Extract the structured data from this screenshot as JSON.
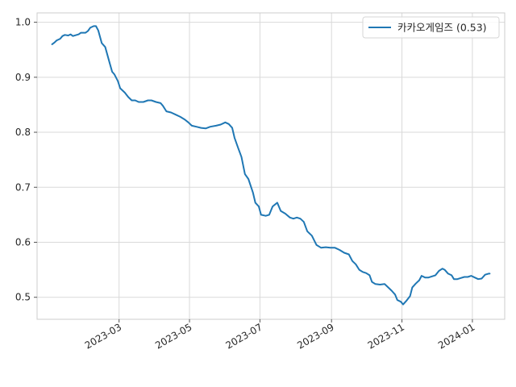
{
  "chart_data": {
    "type": "line",
    "title": "",
    "xlabel": "",
    "ylabel": "",
    "x_axis": "date",
    "xlim": [
      "2022-12-20",
      "2024-01-29"
    ],
    "ylim": [
      0.46,
      1.017
    ],
    "grid": true,
    "legend_position": "top-right",
    "x_ticks": [
      {
        "date": "2023-03-01",
        "label": "2023-03"
      },
      {
        "date": "2023-05-01",
        "label": "2023-05"
      },
      {
        "date": "2023-07-01",
        "label": "2023-07"
      },
      {
        "date": "2023-09-01",
        "label": "2023-09"
      },
      {
        "date": "2023-11-01",
        "label": "2023-11"
      },
      {
        "date": "2024-01-01",
        "label": "2024-01"
      }
    ],
    "y_ticks": [
      {
        "value": 0.5,
        "label": "0.5"
      },
      {
        "value": 0.6,
        "label": "0.6"
      },
      {
        "value": 0.7,
        "label": "0.7"
      },
      {
        "value": 0.8,
        "label": "0.8"
      },
      {
        "value": 0.9,
        "label": "0.9"
      },
      {
        "value": 1.0,
        "label": "1.0"
      }
    ],
    "series": [
      {
        "name": "카카오게임즈 (0.53)",
        "color": "#1f77b4",
        "points": [
          [
            "2023-01-02",
            0.96
          ],
          [
            "2023-01-04",
            0.963
          ],
          [
            "2023-01-06",
            0.967
          ],
          [
            "2023-01-09",
            0.97
          ],
          [
            "2023-01-11",
            0.975
          ],
          [
            "2023-01-13",
            0.977
          ],
          [
            "2023-01-16",
            0.976
          ],
          [
            "2023-01-18",
            0.978
          ],
          [
            "2023-01-20",
            0.975
          ],
          [
            "2023-01-25",
            0.978
          ],
          [
            "2023-01-27",
            0.981
          ],
          [
            "2023-01-31",
            0.981
          ],
          [
            "2023-02-02",
            0.984
          ],
          [
            "2023-02-04",
            0.99
          ],
          [
            "2023-02-07",
            0.993
          ],
          [
            "2023-02-09",
            0.993
          ],
          [
            "2023-02-11",
            0.985
          ],
          [
            "2023-02-14",
            0.962
          ],
          [
            "2023-02-17",
            0.955
          ],
          [
            "2023-02-21",
            0.925
          ],
          [
            "2023-02-23",
            0.91
          ],
          [
            "2023-02-25",
            0.905
          ],
          [
            "2023-02-28",
            0.893
          ],
          [
            "2023-03-02",
            0.88
          ],
          [
            "2023-03-06",
            0.872
          ],
          [
            "2023-03-09",
            0.864
          ],
          [
            "2023-03-12",
            0.858
          ],
          [
            "2023-03-15",
            0.858
          ],
          [
            "2023-03-18",
            0.855
          ],
          [
            "2023-03-22",
            0.855
          ],
          [
            "2023-03-26",
            0.858
          ],
          [
            "2023-03-29",
            0.858
          ],
          [
            "2023-04-02",
            0.855
          ],
          [
            "2023-04-06",
            0.853
          ],
          [
            "2023-04-08",
            0.848
          ],
          [
            "2023-04-11",
            0.838
          ],
          [
            "2023-04-15",
            0.836
          ],
          [
            "2023-04-19",
            0.832
          ],
          [
            "2023-04-23",
            0.828
          ],
          [
            "2023-04-27",
            0.823
          ],
          [
            "2023-04-30",
            0.818
          ],
          [
            "2023-05-03",
            0.812
          ],
          [
            "2023-05-07",
            0.81
          ],
          [
            "2023-05-11",
            0.808
          ],
          [
            "2023-05-15",
            0.807
          ],
          [
            "2023-05-19",
            0.81
          ],
          [
            "2023-05-24",
            0.812
          ],
          [
            "2023-05-28",
            0.814
          ],
          [
            "2023-06-01",
            0.818
          ],
          [
            "2023-06-04",
            0.815
          ],
          [
            "2023-06-07",
            0.808
          ],
          [
            "2023-06-09",
            0.79
          ],
          [
            "2023-06-12",
            0.772
          ],
          [
            "2023-06-15",
            0.755
          ],
          [
            "2023-06-18",
            0.724
          ],
          [
            "2023-06-21",
            0.715
          ],
          [
            "2023-06-25",
            0.69
          ],
          [
            "2023-06-27",
            0.672
          ],
          [
            "2023-06-30",
            0.665
          ],
          [
            "2023-07-02",
            0.65
          ],
          [
            "2023-07-06",
            0.648
          ],
          [
            "2023-07-09",
            0.65
          ],
          [
            "2023-07-12",
            0.665
          ],
          [
            "2023-07-16",
            0.672
          ],
          [
            "2023-07-19",
            0.657
          ],
          [
            "2023-07-23",
            0.652
          ],
          [
            "2023-07-27",
            0.645
          ],
          [
            "2023-07-30",
            0.643
          ],
          [
            "2023-08-02",
            0.645
          ],
          [
            "2023-08-05",
            0.643
          ],
          [
            "2023-08-08",
            0.637
          ],
          [
            "2023-08-11",
            0.62
          ],
          [
            "2023-08-15",
            0.612
          ],
          [
            "2023-08-19",
            0.595
          ],
          [
            "2023-08-23",
            0.59
          ],
          [
            "2023-08-27",
            0.591
          ],
          [
            "2023-08-31",
            0.59
          ],
          [
            "2023-09-04",
            0.59
          ],
          [
            "2023-09-08",
            0.586
          ],
          [
            "2023-09-12",
            0.581
          ],
          [
            "2023-09-16",
            0.578
          ],
          [
            "2023-09-19",
            0.566
          ],
          [
            "2023-09-22",
            0.56
          ],
          [
            "2023-09-25",
            0.55
          ],
          [
            "2023-09-28",
            0.546
          ],
          [
            "2023-10-01",
            0.544
          ],
          [
            "2023-10-04",
            0.54
          ],
          [
            "2023-10-06",
            0.528
          ],
          [
            "2023-10-09",
            0.524
          ],
          [
            "2023-10-13",
            0.523
          ],
          [
            "2023-10-17",
            0.524
          ],
          [
            "2023-10-20",
            0.518
          ],
          [
            "2023-10-23",
            0.512
          ],
          [
            "2023-10-26",
            0.505
          ],
          [
            "2023-10-28",
            0.495
          ],
          [
            "2023-10-31",
            0.492
          ],
          [
            "2023-11-02",
            0.487
          ],
          [
            "2023-11-05",
            0.494
          ],
          [
            "2023-11-08",
            0.502
          ],
          [
            "2023-11-10",
            0.518
          ],
          [
            "2023-11-13",
            0.525
          ],
          [
            "2023-11-16",
            0.531
          ],
          [
            "2023-11-18",
            0.539
          ],
          [
            "2023-11-21",
            0.536
          ],
          [
            "2023-11-24",
            0.536
          ],
          [
            "2023-11-27",
            0.538
          ],
          [
            "2023-11-30",
            0.54
          ],
          [
            "2023-12-03",
            0.548
          ],
          [
            "2023-12-06",
            0.552
          ],
          [
            "2023-12-08",
            0.55
          ],
          [
            "2023-12-11",
            0.543
          ],
          [
            "2023-12-14",
            0.54
          ],
          [
            "2023-12-16",
            0.533
          ],
          [
            "2023-12-19",
            0.533
          ],
          [
            "2023-12-22",
            0.535
          ],
          [
            "2023-12-25",
            0.537
          ],
          [
            "2023-12-28",
            0.537
          ],
          [
            "2023-12-31",
            0.539
          ],
          [
            "2024-01-03",
            0.536
          ],
          [
            "2024-01-06",
            0.533
          ],
          [
            "2024-01-09",
            0.534
          ],
          [
            "2024-01-12",
            0.541
          ],
          [
            "2024-01-15",
            0.543
          ],
          [
            "2024-01-16",
            0.543
          ]
        ]
      }
    ]
  }
}
